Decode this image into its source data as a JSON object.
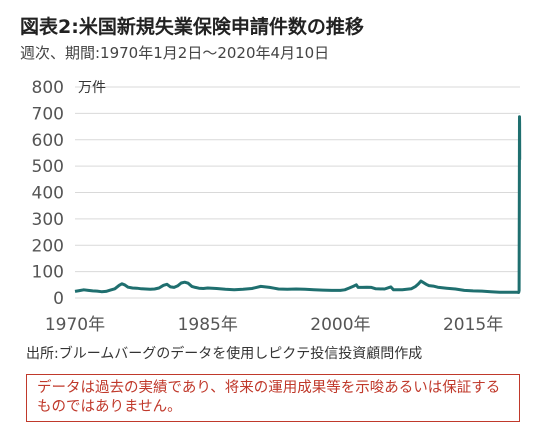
{
  "header": {
    "title": "図表2:米国新規失業保険申請件数の推移",
    "subtitle": "週次、期間:1970年1月2日〜2020年4月10日"
  },
  "footer": {
    "source": "出所:ブルームバーグのデータを使用しピクテ投信投資顧問作成",
    "disclaimer": "データは過去の実績であり、将来の運用成果等を示唆あるいは保証するものではありません。"
  },
  "colors": {
    "series": "#1f6f6f",
    "gridline": "#d9d9d9",
    "disclaimer": "#c0392b"
  },
  "chart_data": {
    "type": "line",
    "title": "図表2:米国新規失業保険申請件数の推移",
    "subtitle": "週次、期間:1970年1月2日〜2020年4月10日",
    "unit": "万件",
    "grid": true,
    "ylim": [
      0,
      800
    ],
    "yticks": [
      "0",
      "100",
      "200",
      "300",
      "400",
      "500",
      "600",
      "700",
      "800"
    ],
    "xlim": [
      1970,
      2020.3
    ],
    "xticks": [
      {
        "year": 1970,
        "label": "1970年"
      },
      {
        "year": 1985,
        "label": "1985年"
      },
      {
        "year": 2000,
        "label": "2000年"
      },
      {
        "year": 2015,
        "label": "2015年"
      }
    ],
    "series": [
      {
        "x": [
          1970.0,
          1970.5,
          1971.0,
          1971.5,
          1972.0,
          1972.5,
          1973.0,
          1973.5,
          1974.0,
          1974.5,
          1975.0,
          1975.3,
          1975.6,
          1976.0,
          1976.5,
          1977.0,
          1977.5,
          1978.0,
          1978.5,
          1979.0,
          1979.5,
          1980.0,
          1980.4,
          1980.8,
          1981.2,
          1981.6,
          1982.0,
          1982.4,
          1982.8,
          1983.2,
          1983.6,
          1984.0,
          1984.5,
          1985.0,
          1986.0,
          1987.0,
          1988.0,
          1989.0,
          1990.0,
          1990.5,
          1991.0,
          1991.5,
          1992.0,
          1992.5,
          1993.0,
          1994.0,
          1995.0,
          1996.0,
          1997.0,
          1998.0,
          1999.0,
          2000.0,
          2000.5,
          2001.0,
          2001.5,
          2001.8,
          2002.0,
          2002.5,
          2003.0,
          2003.5,
          2004.0,
          2005.0,
          2005.7,
          2006.0,
          2007.0,
          2008.0,
          2008.5,
          2008.8,
          2009.1,
          2009.4,
          2009.7,
          2010.0,
          2010.5,
          2011.0,
          2012.0,
          2013.0,
          2014.0,
          2015.0,
          2016.0,
          2017.0,
          2018.0,
          2019.0,
          2019.9,
          2020.15,
          2020.2,
          2020.22,
          2020.24,
          2020.26,
          2020.27
        ],
        "values": [
          25,
          28,
          31,
          29,
          27,
          26,
          24,
          25,
          30,
          35,
          48,
          54,
          50,
          41,
          38,
          37,
          35,
          34,
          33,
          34,
          38,
          48,
          52,
          42,
          40,
          46,
          57,
          60,
          56,
          44,
          40,
          37,
          36,
          38,
          36,
          33,
          31,
          33,
          36,
          40,
          44,
          42,
          40,
          37,
          34,
          33,
          34,
          33,
          31,
          30,
          29,
          29,
          31,
          38,
          45,
          50,
          40,
          40,
          41,
          40,
          35,
          34,
          42,
          31,
          31,
          35,
          44,
          53,
          64,
          58,
          52,
          47,
          45,
          41,
          37,
          34,
          29,
          27,
          26,
          24,
          22,
          22,
          22,
          21,
          28,
          330,
          687,
          661,
          524
        ]
      }
    ]
  }
}
